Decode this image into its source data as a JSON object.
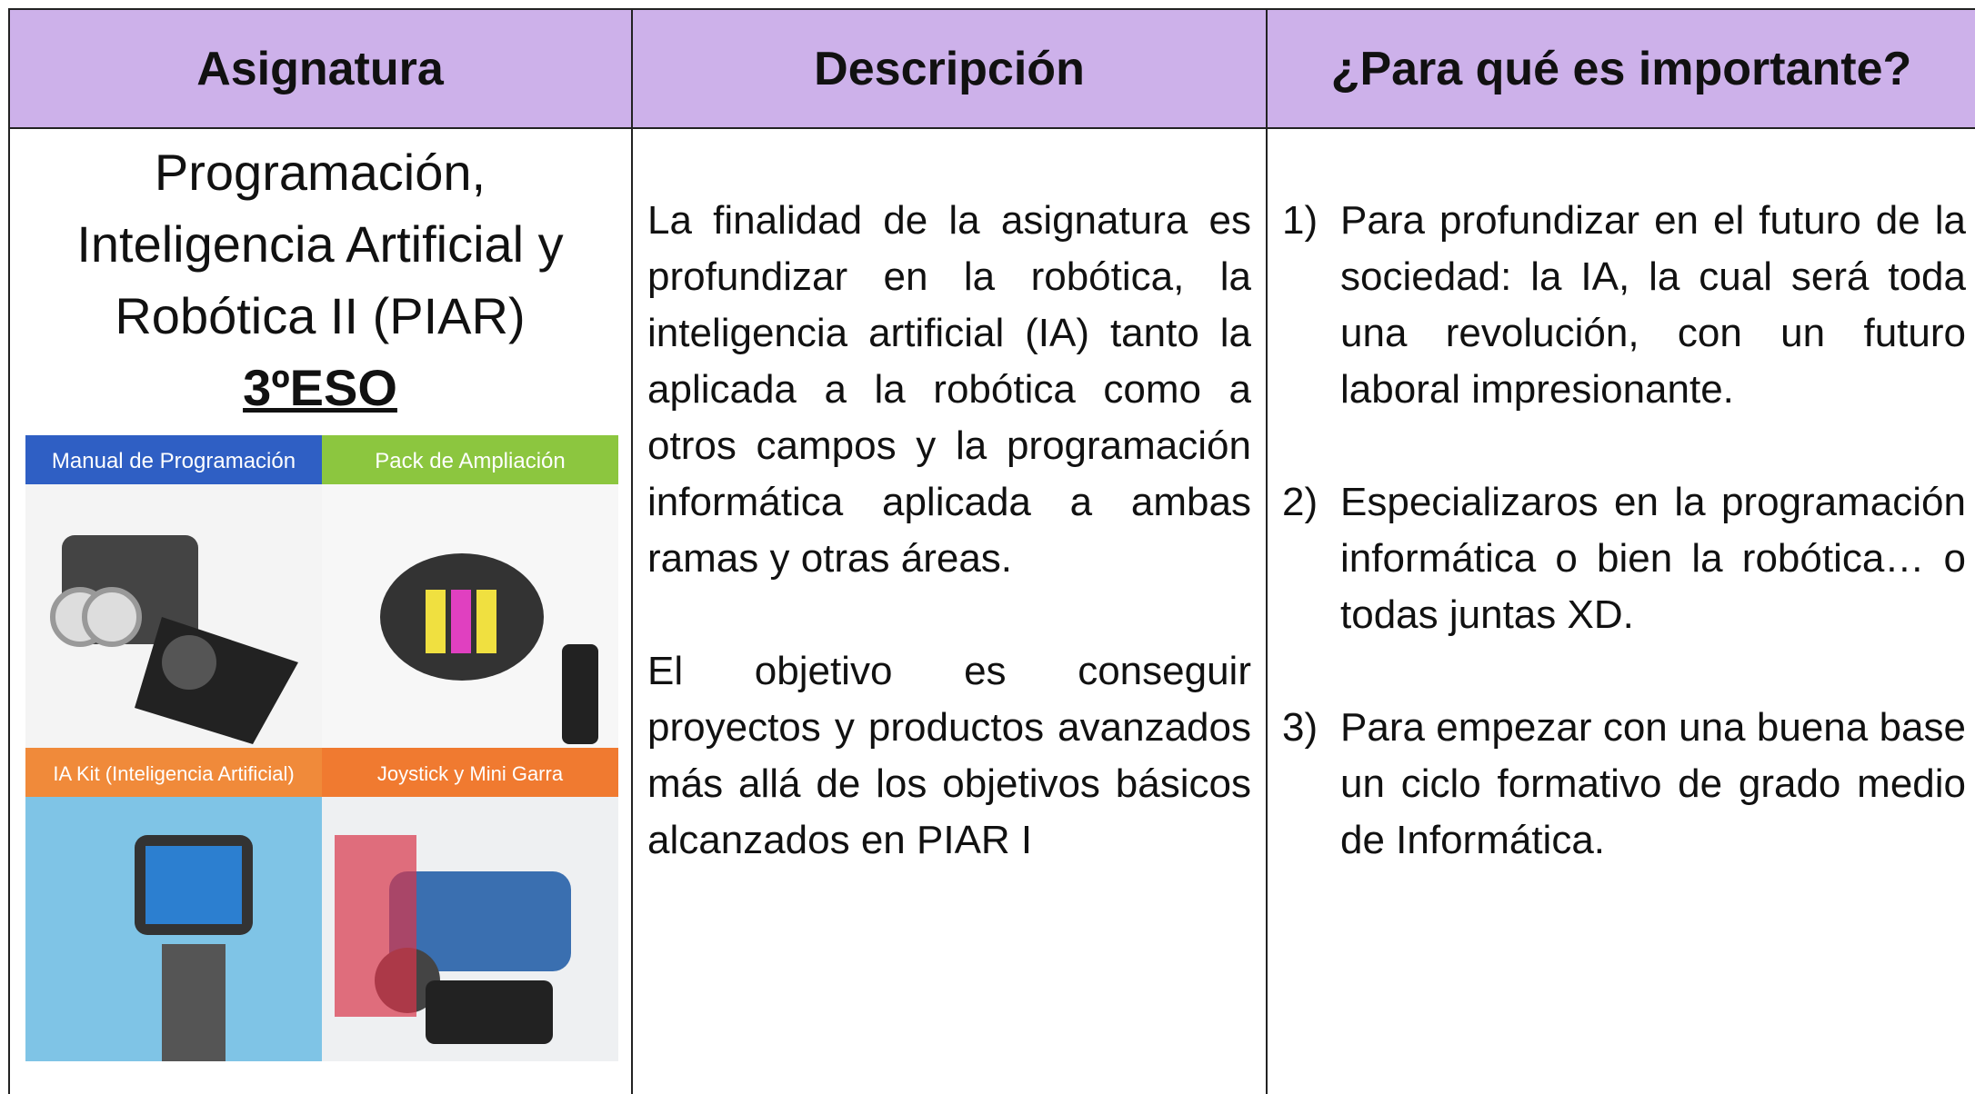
{
  "table": {
    "headers": [
      "Asignatura",
      "Descripción",
      "¿Para qué es importante?"
    ],
    "subject": {
      "lines": [
        "Programación,",
        "Inteligencia Artificial y",
        "Robótica II (PIAR)"
      ],
      "grade": "3ºESO",
      "image_panels": [
        "Manual de Programación",
        "Pack de Ampliación",
        "IA Kit (Inteligencia Artificial)",
        "Joystick y Mini Garra"
      ]
    },
    "description": [
      "La finalidad de la asignatura es profundizar en la robótica, la inteligencia artificial (IA) tanto la aplicada a la robótica como a otros campos y la programación informática aplicada a ambas ramas y otras áreas.",
      "El objetivo es conseguir proyectos y productos avanzados más allá de los objetivos básicos alcanzados en PIAR I"
    ],
    "importance": [
      {
        "num": "1)",
        "text": "Para profundizar en el futuro de la sociedad: la IA, la cual será toda una revolución, con un futuro laboral impresionante."
      },
      {
        "num": "2)",
        "text": "Especializaros en la programación informática o bien la robótica… o todas juntas XD."
      },
      {
        "num": "3)",
        "text": "Para empezar con una buena base un ciclo formativo de grado medio de Informática."
      }
    ]
  }
}
